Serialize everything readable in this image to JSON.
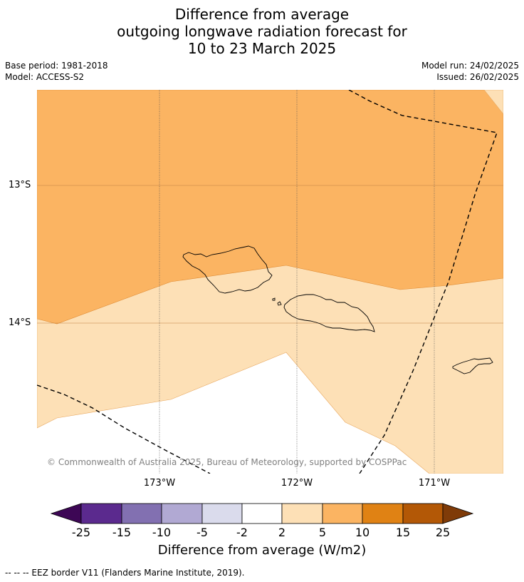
{
  "title": {
    "line1": "Difference from average",
    "line2": "outgoing longwave radiation forecast for",
    "line3": "10 to 23 March 2025"
  },
  "meta": {
    "base_period": "Base period: 1981-2018",
    "model": "Model: ACCESS-S2",
    "model_run": "Model run: 24/02/2025",
    "issued": "Issued: 26/02/2025"
  },
  "map": {
    "lat_labels": [
      "13°S",
      "14°S"
    ],
    "lon_labels": [
      "173°W",
      "172°W",
      "171°W"
    ],
    "copyright": "© Commonwealth of Australia 2025, Bureau of Meteorology, supported by COSPPac",
    "fill_colors": {
      "band_5_10": "#fbb462",
      "band_2_5": "#fde0b6",
      "band_neutral": "#ffffff"
    }
  },
  "colorbar": {
    "labels": [
      "-25",
      "-15",
      "-10",
      "-5",
      "-2",
      "2",
      "5",
      "10",
      "15",
      "25"
    ],
    "colors": [
      "#3d0755",
      "#5b2a8e",
      "#8270b1",
      "#b1a9d3",
      "#dadbec",
      "#ffffff",
      "#fde0b6",
      "#fbb462",
      "#e08214",
      "#b35806",
      "#7f3b08"
    ],
    "title": "Difference from average (W/m2)"
  },
  "footnote": "--  --  -- EEZ border V11 (Flanders Marine Institute, 2019)."
}
